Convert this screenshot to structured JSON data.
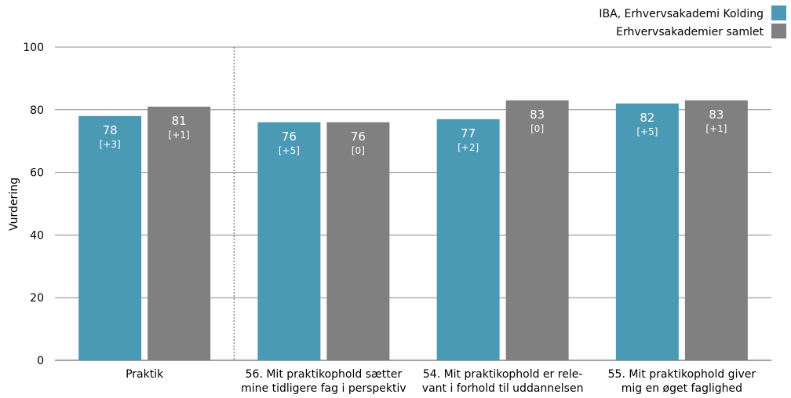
{
  "chart_data": {
    "type": "bar",
    "ylabel": "Vurdering",
    "ylim": [
      0,
      100
    ],
    "yticks": [
      0,
      20,
      40,
      60,
      80,
      100
    ],
    "grid": true,
    "legend_position": "top-right",
    "categories": [
      [
        "Praktik"
      ],
      [
        "56. Mit praktikophold sætter",
        "mine tidligere fag i perspektiv"
      ],
      [
        "54. Mit praktikophold er rele-",
        "vant i forhold til uddannelsen"
      ],
      [
        "55. Mit praktikophold giver",
        "mig en øget faglighed"
      ]
    ],
    "series": [
      {
        "name": "IBA, Erhvervsakademi Kolding",
        "color": "#4a9ab5",
        "values": [
          78,
          76,
          77,
          82
        ],
        "changes": [
          "[+3]",
          "[+5]",
          "[+2]",
          "[+5]"
        ]
      },
      {
        "name": "Erhvervsakademier samlet",
        "color": "#808080",
        "values": [
          81,
          76,
          83,
          83
        ],
        "changes": [
          "[+1]",
          "[0]",
          "[0]",
          "[+1]"
        ]
      }
    ]
  }
}
